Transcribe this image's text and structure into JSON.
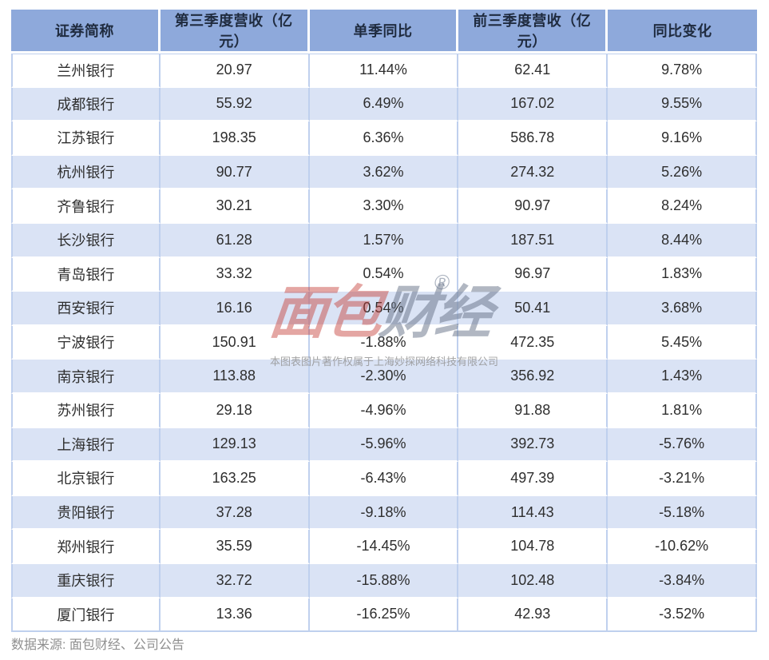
{
  "table": {
    "columns": [
      "证券简称",
      "第三季度营收（亿元）",
      "单季同比",
      "前三季度营收（亿元）",
      "同比变化"
    ],
    "column_keys": [
      "name",
      "q3_revenue",
      "q3_yoy",
      "ytd_revenue",
      "ytd_yoy"
    ],
    "rows": [
      {
        "name": "兰州银行",
        "q3_revenue": "20.97",
        "q3_yoy": "11.44%",
        "ytd_revenue": "62.41",
        "ytd_yoy": "9.78%"
      },
      {
        "name": "成都银行",
        "q3_revenue": "55.92",
        "q3_yoy": "6.49%",
        "ytd_revenue": "167.02",
        "ytd_yoy": "9.55%"
      },
      {
        "name": "江苏银行",
        "q3_revenue": "198.35",
        "q3_yoy": "6.36%",
        "ytd_revenue": "586.78",
        "ytd_yoy": "9.16%"
      },
      {
        "name": "杭州银行",
        "q3_revenue": "90.77",
        "q3_yoy": "3.62%",
        "ytd_revenue": "274.32",
        "ytd_yoy": "5.26%"
      },
      {
        "name": "齐鲁银行",
        "q3_revenue": "30.21",
        "q3_yoy": "3.30%",
        "ytd_revenue": "90.97",
        "ytd_yoy": "8.24%"
      },
      {
        "name": "长沙银行",
        "q3_revenue": "61.28",
        "q3_yoy": "1.57%",
        "ytd_revenue": "187.51",
        "ytd_yoy": "8.44%"
      },
      {
        "name": "青岛银行",
        "q3_revenue": "33.32",
        "q3_yoy": "0.54%",
        "ytd_revenue": "96.97",
        "ytd_yoy": "1.83%"
      },
      {
        "name": "西安银行",
        "q3_revenue": "16.16",
        "q3_yoy": "0.54%",
        "ytd_revenue": "50.41",
        "ytd_yoy": "3.68%"
      },
      {
        "name": "宁波银行",
        "q3_revenue": "150.91",
        "q3_yoy": "-1.88%",
        "ytd_revenue": "472.35",
        "ytd_yoy": "5.45%"
      },
      {
        "name": "南京银行",
        "q3_revenue": "113.88",
        "q3_yoy": "-2.30%",
        "ytd_revenue": "356.92",
        "ytd_yoy": "1.43%"
      },
      {
        "name": "苏州银行",
        "q3_revenue": "29.18",
        "q3_yoy": "-4.96%",
        "ytd_revenue": "91.88",
        "ytd_yoy": "1.81%"
      },
      {
        "name": "上海银行",
        "q3_revenue": "129.13",
        "q3_yoy": "-5.96%",
        "ytd_revenue": "392.73",
        "ytd_yoy": "-5.76%"
      },
      {
        "name": "北京银行",
        "q3_revenue": "163.25",
        "q3_yoy": "-6.43%",
        "ytd_revenue": "497.39",
        "ytd_yoy": "-3.21%"
      },
      {
        "name": "贵阳银行",
        "q3_revenue": "37.28",
        "q3_yoy": "-9.18%",
        "ytd_revenue": "114.43",
        "ytd_yoy": "-5.18%"
      },
      {
        "name": "郑州银行",
        "q3_revenue": "35.59",
        "q3_yoy": "-14.45%",
        "ytd_revenue": "104.78",
        "ytd_yoy": "-10.62%"
      },
      {
        "name": "重庆银行",
        "q3_revenue": "32.72",
        "q3_yoy": "-15.88%",
        "ytd_revenue": "102.48",
        "ytd_yoy": "-3.84%"
      },
      {
        "name": "厦门银行",
        "q3_revenue": "13.36",
        "q3_yoy": "-16.25%",
        "ytd_revenue": "42.93",
        "ytd_yoy": "-3.52%"
      }
    ]
  },
  "watermark": {
    "logo_red": "面包",
    "logo_gray": "财经",
    "registered_mark": "®",
    "copyright": "本图表图片著作权属于上海妙探网络科技有限公司"
  },
  "footer": {
    "source": "数据来源: 面包财经、公司公告"
  },
  "colors": {
    "header_bg": "#8EA9DB",
    "row_alt_bg": "#DAE3F5",
    "cell_border": "#BFD0EE",
    "header_text": "#1F2B3F",
    "body_text": "#2E2E2E",
    "footer_text": "#8F8F8F",
    "logo_red": "rgba(196,58,50,0.45)",
    "logo_gray": "rgba(100,112,134,0.50)"
  }
}
